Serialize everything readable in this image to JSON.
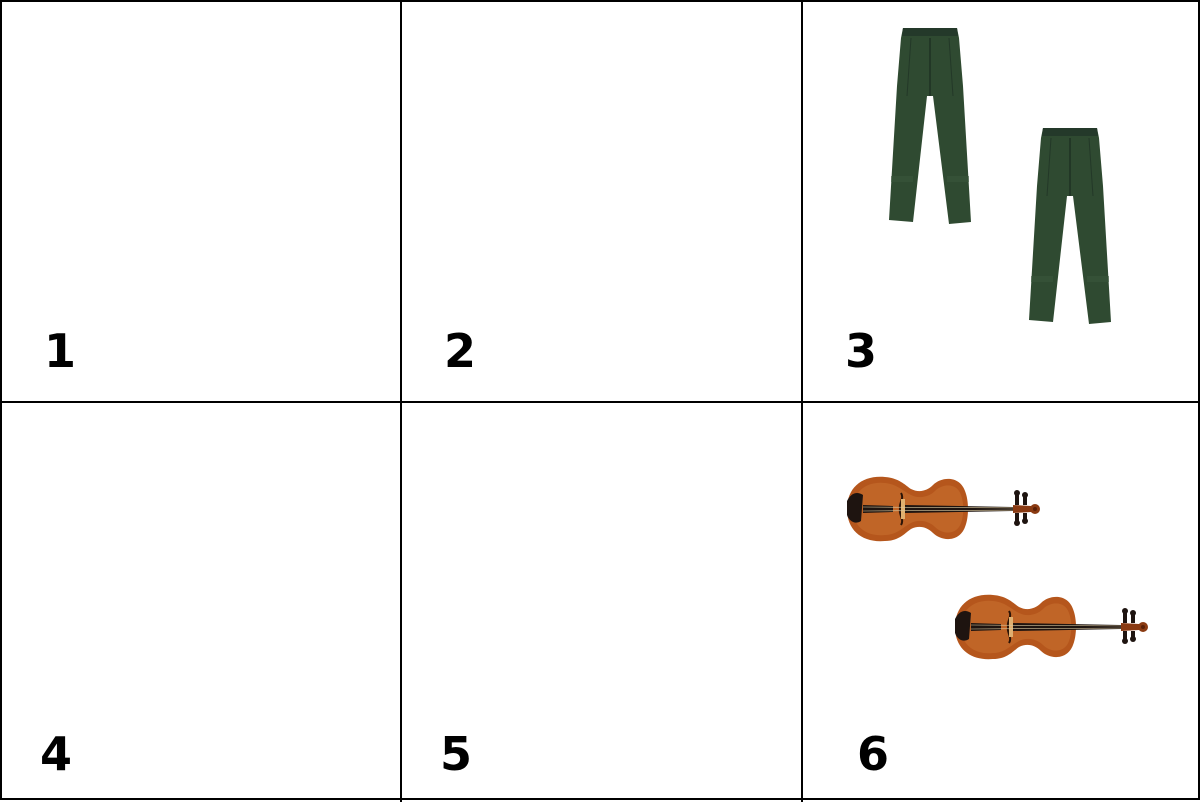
{
  "cells": [
    {
      "label": "1",
      "content": "empty"
    },
    {
      "label": "2",
      "content": "empty"
    },
    {
      "label": "3",
      "content": "trousers",
      "count": 2
    },
    {
      "label": "4",
      "content": "empty"
    },
    {
      "label": "5",
      "content": "empty"
    },
    {
      "label": "6",
      "content": "violin",
      "count": 2
    }
  ],
  "colors": {
    "trousers": "#2f4a31",
    "violin_body": "#b5561c",
    "violin_dark": "#1e1410"
  },
  "icons": [
    "trousers-icon",
    "violin-icon"
  ]
}
